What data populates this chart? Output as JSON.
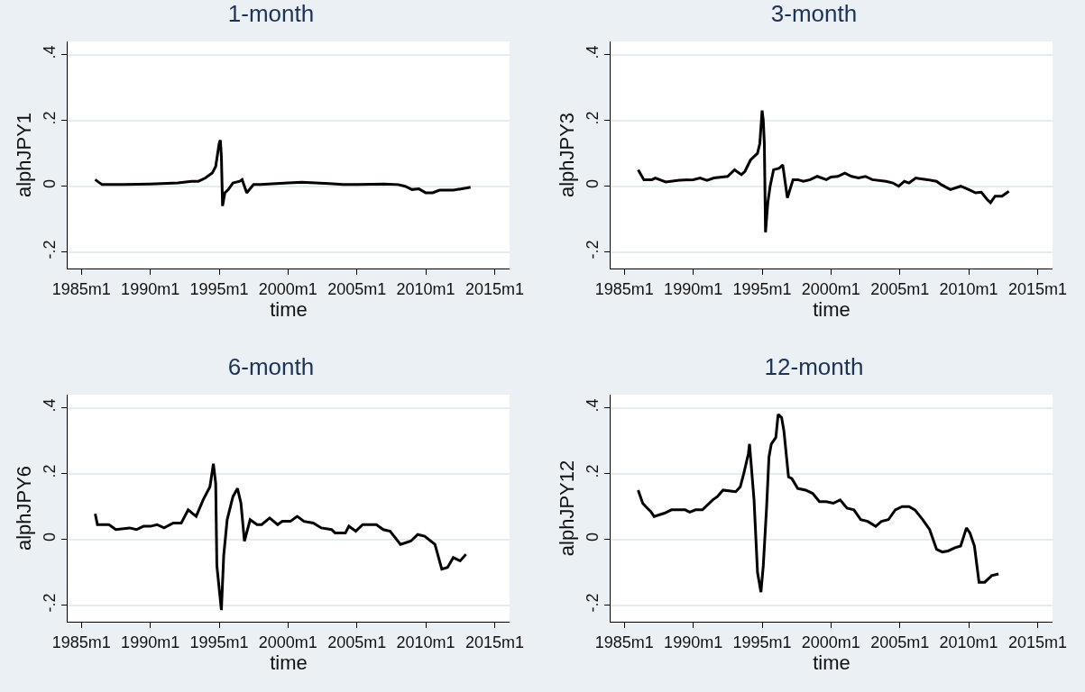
{
  "chart_data": [
    {
      "type": "line",
      "title": "1-month",
      "xlabel": "time",
      "ylabel": "alphJPY1",
      "grid": "y",
      "legend": false,
      "marker": "none",
      "line_style": "solid",
      "xlim": [
        "1984-01",
        "2016-02"
      ],
      "ylim": [
        -0.25,
        0.44
      ],
      "xticks": [
        {
          "value": "1985-01",
          "label": "1985m1"
        },
        {
          "value": "1990-01",
          "label": "1990m1"
        },
        {
          "value": "1995-01",
          "label": "1995m1"
        },
        {
          "value": "2000-01",
          "label": "2000m1"
        },
        {
          "value": "2005-01",
          "label": "2005m1"
        },
        {
          "value": "2010-01",
          "label": "2010m1"
        },
        {
          "value": "2015-01",
          "label": "2015m1"
        }
      ],
      "yticks": [
        {
          "value": -0.2,
          "label": "-.2"
        },
        {
          "value": 0,
          "label": "0"
        },
        {
          "value": 0.2,
          "label": ".2"
        },
        {
          "value": 0.4,
          "label": ".4"
        }
      ],
      "x": [
        "1986-01",
        "1986-07",
        "1988-01",
        "1990-01",
        "1992-01",
        "1993-01",
        "1993-07",
        "1994-01",
        "1994-07",
        "1994-10",
        "1995-01",
        "1995-02",
        "1995-03",
        "1995-04",
        "1995-06",
        "1995-09",
        "1996-01",
        "1996-07",
        "1996-09",
        "1997-01",
        "1997-07",
        "1998-01",
        "2000-01",
        "2001-01",
        "2003-01",
        "2004-01",
        "2005-01",
        "2007-01",
        "2008-01",
        "2008-07",
        "2009-01",
        "2009-07",
        "2010-01",
        "2010-07",
        "2011-01",
        "2012-01",
        "2013-01",
        "2013-04"
      ],
      "series": [
        {
          "color": "#000000",
          "values": [
            0.02,
            0.005,
            0.005,
            0.007,
            0.01,
            0.015,
            0.015,
            0.025,
            0.04,
            0.06,
            0.13,
            0.14,
            0.09,
            -0.06,
            -0.02,
            -0.01,
            0.01,
            0.015,
            0.02,
            -0.02,
            0.005,
            0.005,
            0.01,
            0.012,
            0.008,
            0.005,
            0.005,
            0.007,
            0.005,
            0,
            -0.01,
            -0.008,
            -0.02,
            -0.02,
            -0.012,
            -0.012,
            -0.005,
            -0.003
          ]
        }
      ]
    },
    {
      "type": "line",
      "title": "3-month",
      "xlabel": "time",
      "ylabel": "alphJPY3",
      "grid": "y",
      "legend": false,
      "marker": "none",
      "line_style": "solid",
      "xlim": [
        "1984-01",
        "2016-02"
      ],
      "ylim": [
        -0.25,
        0.44
      ],
      "xticks": [
        {
          "value": "1985-01",
          "label": "1985m1"
        },
        {
          "value": "1990-01",
          "label": "1990m1"
        },
        {
          "value": "1995-01",
          "label": "1995m1"
        },
        {
          "value": "2000-01",
          "label": "2000m1"
        },
        {
          "value": "2005-01",
          "label": "2005m1"
        },
        {
          "value": "2010-01",
          "label": "2010m1"
        },
        {
          "value": "2015-01",
          "label": "2015m1"
        }
      ],
      "yticks": [
        {
          "value": -0.2,
          "label": "-.2"
        },
        {
          "value": 0,
          "label": "0"
        },
        {
          "value": 0.2,
          "label": ".2"
        },
        {
          "value": 0.4,
          "label": ".4"
        }
      ],
      "x": [
        "1986-01",
        "1986-06",
        "1987-01",
        "1987-04",
        "1988-01",
        "1989-01",
        "1990-01",
        "1990-07",
        "1991-01",
        "1991-07",
        "1992-07",
        "1993-01",
        "1993-07",
        "1993-10",
        "1994-03",
        "1994-09",
        "1994-11",
        "1995-01",
        "1995-02",
        "1995-03",
        "1995-04",
        "1995-06",
        "1995-08",
        "1995-11",
        "1996-04",
        "1996-07",
        "1996-11",
        "1997-04",
        "1997-08",
        "1998-01",
        "1998-07",
        "1999-01",
        "1999-09",
        "2000-01",
        "2000-07",
        "2001-01",
        "2001-07",
        "2002-01",
        "2002-07",
        "2003-01",
        "2004-01",
        "2004-07",
        "2004-12",
        "2005-05",
        "2005-09",
        "2006-03",
        "2007-01",
        "2007-09",
        "2008-01",
        "2008-09",
        "2009-06",
        "2010-01",
        "2010-07",
        "2010-12",
        "2011-05",
        "2011-08",
        "2011-12",
        "2012-06",
        "2012-12"
      ],
      "series": [
        {
          "color": "#000000",
          "values": [
            0.05,
            0.02,
            0.02,
            0.025,
            0.013,
            0.018,
            0.02,
            0.025,
            0.018,
            0.025,
            0.03,
            0.05,
            0.035,
            0.045,
            0.08,
            0.1,
            0.13,
            0.23,
            0.2,
            0.13,
            -0.14,
            -0.05,
            0,
            0.05,
            0.055,
            0.065,
            -0.035,
            0.02,
            0.02,
            0.015,
            0.02,
            0.03,
            0.02,
            0.028,
            0.03,
            0.04,
            0.03,
            0.025,
            0.03,
            0.02,
            0.015,
            0.01,
            0,
            0.015,
            0.01,
            0.025,
            0.02,
            0.015,
            0.005,
            -0.01,
            0,
            -0.01,
            -0.02,
            -0.018,
            -0.04,
            -0.05,
            -0.03,
            -0.03,
            -0.015
          ]
        }
      ]
    },
    {
      "type": "line",
      "title": "6-month",
      "xlabel": "time",
      "ylabel": "alphJPY6",
      "grid": "y",
      "legend": false,
      "marker": "none",
      "line_style": "solid",
      "xlim": [
        "1984-01",
        "2016-02"
      ],
      "ylim": [
        -0.25,
        0.44
      ],
      "xticks": [
        {
          "value": "1985-01",
          "label": "1985m1"
        },
        {
          "value": "1990-01",
          "label": "1990m1"
        },
        {
          "value": "1995-01",
          "label": "1995m1"
        },
        {
          "value": "2000-01",
          "label": "2000m1"
        },
        {
          "value": "2005-01",
          "label": "2005m1"
        },
        {
          "value": "2010-01",
          "label": "2010m1"
        },
        {
          "value": "2015-01",
          "label": "2015m1"
        }
      ],
      "yticks": [
        {
          "value": -0.2,
          "label": "-.2"
        },
        {
          "value": 0,
          "label": "0"
        },
        {
          "value": 0.2,
          "label": ".2"
        },
        {
          "value": 0.4,
          "label": ".4"
        }
      ],
      "x": [
        "1986-01",
        "1986-03",
        "1987-01",
        "1987-07",
        "1988-07",
        "1989-01",
        "1989-07",
        "1990-01",
        "1990-07",
        "1991-01",
        "1991-09",
        "1992-04",
        "1992-10",
        "1993-05",
        "1993-11",
        "1994-05",
        "1994-08",
        "1994-10",
        "1994-11",
        "1995-03",
        "1995-05",
        "1995-08",
        "1996-01",
        "1996-05",
        "1996-08",
        "1996-11",
        "1997-04",
        "1997-10",
        "1998-02",
        "1998-09",
        "1999-04",
        "1999-08",
        "2000-03",
        "2000-09",
        "2001-03",
        "2001-11",
        "2002-06",
        "2003-03",
        "2003-06",
        "2004-03",
        "2004-06",
        "2004-12",
        "2005-06",
        "2006-06",
        "2006-12",
        "2007-06",
        "2008-03",
        "2008-12",
        "2009-06",
        "2009-12",
        "2010-09",
        "2011-03",
        "2011-08",
        "2012-01",
        "2012-07",
        "2012-12"
      ],
      "series": [
        {
          "color": "#000000",
          "values": [
            0.078,
            0.045,
            0.045,
            0.03,
            0.035,
            0.03,
            0.04,
            0.04,
            0.045,
            0.035,
            0.05,
            0.05,
            0.09,
            0.07,
            0.12,
            0.16,
            0.23,
            0.17,
            -0.08,
            -0.215,
            -0.05,
            0.06,
            0.13,
            0.155,
            0.11,
            -0.005,
            0.06,
            0.045,
            0.045,
            0.065,
            0.045,
            0.055,
            0.055,
            0.07,
            0.055,
            0.05,
            0.035,
            0.03,
            0.02,
            0.02,
            0.04,
            0.025,
            0.045,
            0.045,
            0.03,
            0.025,
            -0.015,
            -0.005,
            0.015,
            0.01,
            -0.015,
            -0.09,
            -0.085,
            -0.055,
            -0.065,
            -0.045
          ]
        }
      ]
    },
    {
      "type": "line",
      "title": "12-month",
      "xlabel": "time",
      "ylabel": "alphJPY12",
      "grid": "y",
      "legend": false,
      "marker": "none",
      "line_style": "solid",
      "xlim": [
        "1984-01",
        "2016-02"
      ],
      "ylim": [
        -0.25,
        0.44
      ],
      "xticks": [
        {
          "value": "1985-01",
          "label": "1985m1"
        },
        {
          "value": "1990-01",
          "label": "1990m1"
        },
        {
          "value": "1995-01",
          "label": "1995m1"
        },
        {
          "value": "2000-01",
          "label": "2000m1"
        },
        {
          "value": "2005-01",
          "label": "2005m1"
        },
        {
          "value": "2010-01",
          "label": "2010m1"
        },
        {
          "value": "2015-01",
          "label": "2015m1"
        }
      ],
      "yticks": [
        {
          "value": -0.2,
          "label": "-.2"
        },
        {
          "value": 0,
          "label": "0"
        },
        {
          "value": 0.2,
          "label": ".2"
        },
        {
          "value": 0.4,
          "label": ".4"
        }
      ],
      "x": [
        "1986-01",
        "1986-05",
        "1986-09",
        "1986-12",
        "1987-03",
        "1987-12",
        "1988-06",
        "1989-06",
        "1989-10",
        "1990-03",
        "1990-09",
        "1991-06",
        "1991-10",
        "1992-03",
        "1993-02",
        "1993-06",
        "1993-09",
        "1994-01",
        "1994-02",
        "1994-03",
        "1994-06",
        "1994-09",
        "1994-12",
        "1995-02",
        "1995-05",
        "1995-07",
        "1995-09",
        "1996-01",
        "1996-03",
        "1996-06",
        "1996-08",
        "1996-12",
        "1997-03",
        "1997-08",
        "1998-03",
        "1998-09",
        "1999-03",
        "1999-09",
        "2000-03",
        "2000-09",
        "2001-03",
        "2001-09",
        "2002-03",
        "2002-09",
        "2003-04",
        "2003-09",
        "2004-03",
        "2004-09",
        "2005-03",
        "2005-09",
        "2006-02",
        "2006-09",
        "2007-03",
        "2007-09",
        "2008-02",
        "2008-07",
        "2009-01",
        "2009-06",
        "2009-11",
        "2010-02",
        "2010-06",
        "2010-10",
        "2011-03",
        "2011-09",
        "2012-03"
      ],
      "series": [
        {
          "color": "#000000",
          "values": [
            0.15,
            0.11,
            0.095,
            0.085,
            0.07,
            0.08,
            0.09,
            0.09,
            0.083,
            0.09,
            0.09,
            0.12,
            0.13,
            0.15,
            0.145,
            0.16,
            0.2,
            0.26,
            0.29,
            0.25,
            0.12,
            -0.1,
            -0.16,
            -0.08,
            0.1,
            0.25,
            0.29,
            0.31,
            0.38,
            0.37,
            0.33,
            0.19,
            0.185,
            0.155,
            0.15,
            0.14,
            0.115,
            0.115,
            0.11,
            0.12,
            0.095,
            0.09,
            0.06,
            0.055,
            0.04,
            0.055,
            0.06,
            0.09,
            0.1,
            0.1,
            0.09,
            0.06,
            0.03,
            -0.03,
            -0.038,
            -0.035,
            -0.025,
            -0.02,
            0.035,
            0.02,
            -0.02,
            -0.13,
            -0.13,
            -0.11,
            -0.105
          ]
        }
      ]
    }
  ]
}
